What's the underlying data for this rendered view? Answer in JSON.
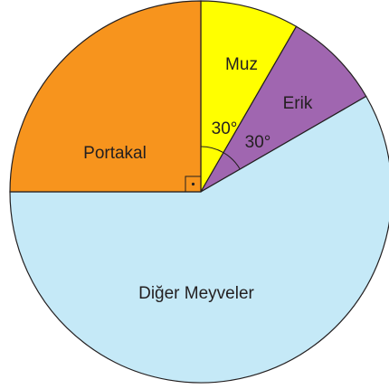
{
  "chart_data": {
    "type": "pie",
    "categories": [
      "Muz",
      "Erik",
      "Diğer Meyveler",
      "Portakal"
    ],
    "values": [
      30,
      30,
      210,
      90
    ],
    "value_labels": [
      "30°",
      "30°",
      null,
      null
    ],
    "colors": [
      "#ffff00",
      "#a066b0",
      "#c5e9f7",
      "#f7941d"
    ]
  }
}
